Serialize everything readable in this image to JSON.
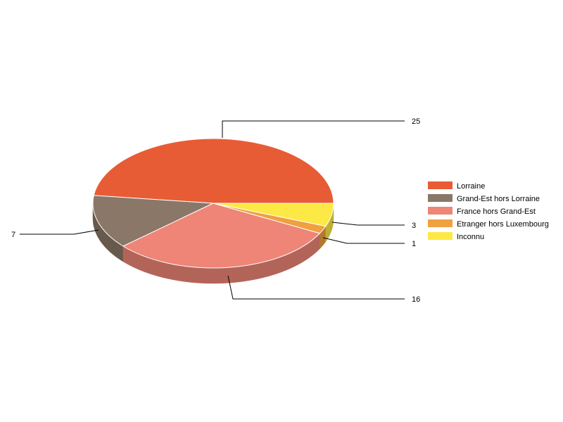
{
  "chart_data": {
    "type": "pie",
    "style": "3d",
    "categories": [
      "Lorraine",
      "Grand-Est hors Lorraine",
      "France hors Grand-Est",
      "Etranger hors Luxembourg",
      "Inconnu"
    ],
    "values": [
      25,
      7,
      16,
      1,
      3
    ],
    "colors": [
      "#e85c35",
      "#8a7767",
      "#ee8577",
      "#f0a040",
      "#fde945"
    ],
    "data_labels": [
      "25",
      "7",
      "16",
      "1",
      "3"
    ],
    "legend_position": "right"
  }
}
